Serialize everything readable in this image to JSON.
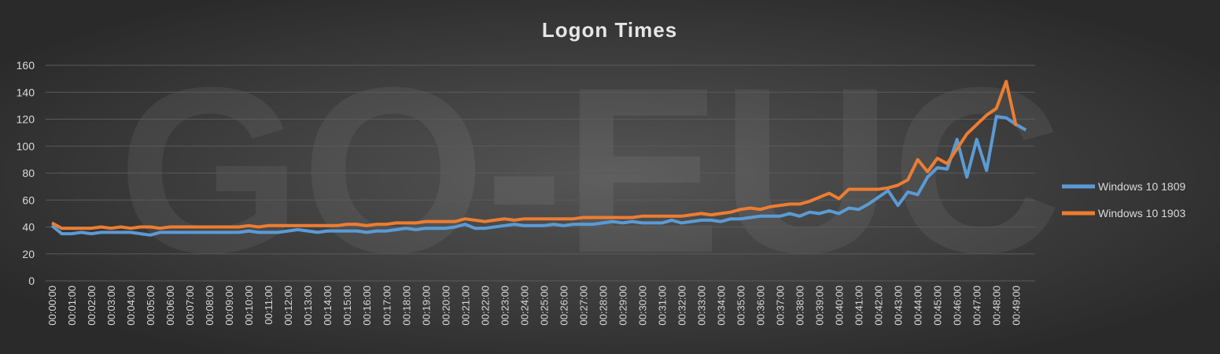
{
  "chart_data": {
    "type": "line",
    "title": "Logon Times",
    "watermark": "GO-EUC",
    "categories": [
      "00:00:00",
      null,
      "00:01:00",
      null,
      "00:02:00",
      null,
      "00:03:00",
      null,
      "00:04:00",
      null,
      "00:05:00",
      null,
      "00:06:00",
      null,
      "00:07:00",
      null,
      "00:08:00",
      null,
      "00:09:00",
      null,
      "00:10:00",
      null,
      "00:11:00",
      null,
      "00:12:00",
      null,
      "00:13:00",
      null,
      "00:14:00",
      null,
      "00:15:00",
      null,
      "00:16:00",
      null,
      "00:17:00",
      null,
      "00:18:00",
      null,
      "00:19:00",
      null,
      "00:20:00",
      null,
      "00:21:00",
      null,
      "00:22:00",
      null,
      "00:23:00",
      null,
      "00:24:00",
      null,
      "00:25:00",
      null,
      "00:26:00",
      null,
      "00:27:00",
      null,
      "00:28:00",
      null,
      "00:29:00",
      null,
      "00:30:00",
      null,
      "00:31:00",
      null,
      "00:32:00",
      null,
      "00:33:00",
      null,
      "00:34:00",
      null,
      "00:35:00",
      null,
      "00:36:00",
      null,
      "00:37:00",
      null,
      "00:38:00",
      null,
      "00:39:00",
      null,
      "00:40:00",
      null,
      "00:41:00",
      null,
      "00:42:00",
      null,
      "00:43:00",
      null,
      "00:44:00",
      null,
      "00:45:00",
      null,
      "00:46:00",
      null,
      "00:47:00",
      null,
      "00:48:00",
      null,
      "00:49:00",
      null
    ],
    "series": [
      {
        "name": "Windows 10 1809",
        "color": "#5b9bd5",
        "values": [
          41,
          35,
          35,
          36,
          35,
          36,
          36,
          36,
          36,
          35,
          34,
          36,
          36,
          36,
          36,
          36,
          36,
          36,
          36,
          36,
          37,
          36,
          36,
          36,
          37,
          38,
          37,
          36,
          37,
          37,
          37,
          37,
          36,
          37,
          37,
          38,
          39,
          38,
          39,
          39,
          39,
          40,
          42,
          39,
          39,
          40,
          41,
          42,
          41,
          41,
          41,
          42,
          41,
          42,
          42,
          42,
          43,
          44,
          43,
          44,
          43,
          43,
          43,
          45,
          43,
          44,
          45,
          45,
          44,
          46,
          46,
          47,
          48,
          48,
          48,
          50,
          48,
          51,
          50,
          52,
          50,
          54,
          53,
          57,
          62,
          67,
          56,
          66,
          64,
          77,
          84,
          83,
          105,
          77,
          105,
          82,
          122,
          121,
          116,
          112
        ]
      },
      {
        "name": "Windows 10 1903",
        "color": "#ed7d31",
        "values": [
          43,
          39,
          39,
          39,
          39,
          40,
          39,
          40,
          39,
          40,
          40,
          39,
          40,
          40,
          40,
          40,
          40,
          40,
          40,
          40,
          41,
          40,
          41,
          41,
          41,
          41,
          41,
          41,
          41,
          41,
          42,
          42,
          41,
          42,
          42,
          43,
          43,
          43,
          44,
          44,
          44,
          44,
          46,
          45,
          44,
          45,
          46,
          45,
          46,
          46,
          46,
          46,
          46,
          46,
          47,
          47,
          47,
          47,
          47,
          47,
          48,
          48,
          48,
          48,
          48,
          49,
          50,
          49,
          50,
          51,
          53,
          54,
          53,
          55,
          56,
          57,
          57,
          59,
          62,
          65,
          61,
          68,
          68,
          68,
          68,
          69,
          71,
          75,
          90,
          81,
          91,
          87,
          98,
          109,
          116,
          123,
          128,
          148,
          115,
          null
        ]
      }
    ],
    "ylim": [
      0,
      160
    ],
    "yticks": [
      0,
      20,
      40,
      60,
      80,
      100,
      120,
      140,
      160
    ],
    "grid": true,
    "legend": "right"
  }
}
